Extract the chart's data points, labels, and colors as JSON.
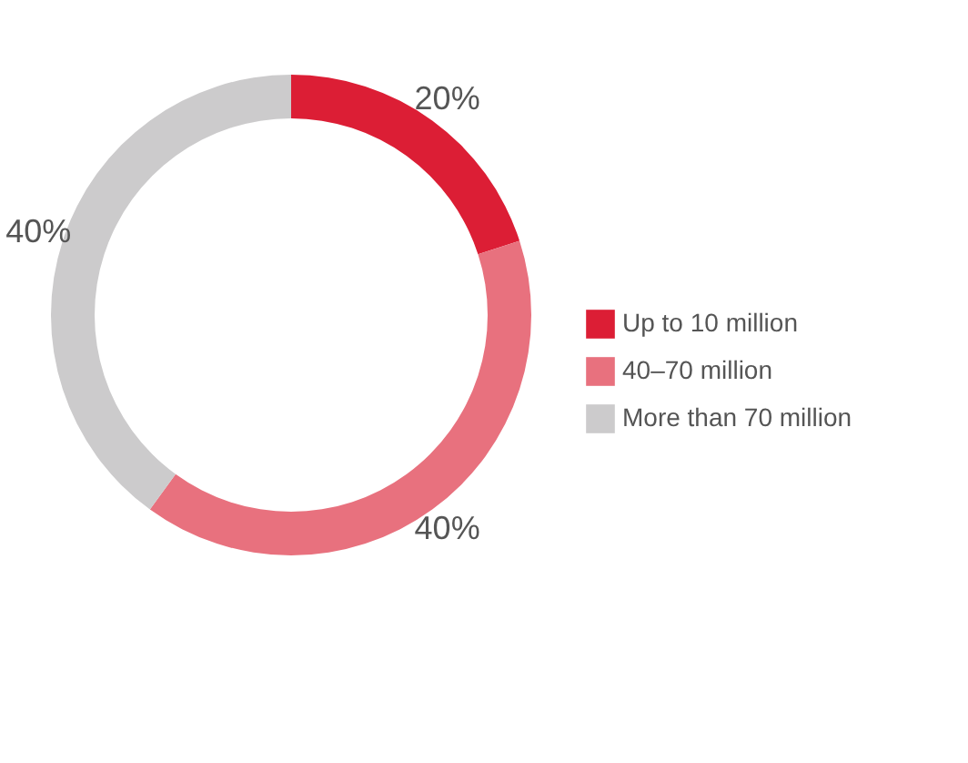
{
  "chart_data": {
    "type": "donut",
    "categories": [
      "Up to 10 million",
      "40–70 million",
      "More than 70 million"
    ],
    "values": [
      20,
      40,
      40
    ],
    "colors": [
      "#dc1e35",
      "#e8717e",
      "#cccbcc"
    ],
    "value_labels": [
      "20%",
      "40%",
      "40%"
    ],
    "legend": "right"
  }
}
